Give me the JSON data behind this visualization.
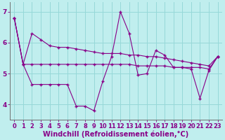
{
  "xlabel": "Windchill (Refroidissement éolien,°C)",
  "x": [
    0,
    1,
    2,
    3,
    4,
    5,
    6,
    7,
    8,
    9,
    10,
    11,
    12,
    13,
    14,
    15,
    16,
    17,
    18,
    19,
    20,
    21,
    22,
    23
  ],
  "line1": [
    6.8,
    5.3,
    4.65,
    4.65,
    4.65,
    4.65,
    4.65,
    3.95,
    3.95,
    3.8,
    4.75,
    5.55,
    7.0,
    6.3,
    4.95,
    5.0,
    5.75,
    5.6,
    5.2,
    5.2,
    5.15,
    4.2,
    5.1,
    5.55
  ],
  "line2": [
    6.8,
    5.3,
    6.3,
    6.1,
    5.9,
    5.85,
    5.85,
    5.8,
    5.75,
    5.7,
    5.65,
    5.65,
    5.65,
    5.6,
    5.6,
    5.55,
    5.55,
    5.5,
    5.45,
    5.4,
    5.35,
    5.3,
    5.25,
    5.55
  ],
  "line3": [
    6.8,
    5.3,
    5.3,
    5.3,
    5.3,
    5.3,
    5.3,
    5.3,
    5.3,
    5.3,
    5.3,
    5.3,
    5.3,
    5.3,
    5.25,
    5.25,
    5.25,
    5.25,
    5.2,
    5.2,
    5.2,
    5.2,
    5.15,
    5.55
  ],
  "line_color": "#880088",
  "bg_color": "#c0eeee",
  "grid_color": "#96d8d8",
  "ylim": [
    3.5,
    7.3
  ],
  "yticks": [
    4,
    5,
    6,
    7
  ],
  "tick_fontsize": 6.5,
  "label_fontsize": 7
}
